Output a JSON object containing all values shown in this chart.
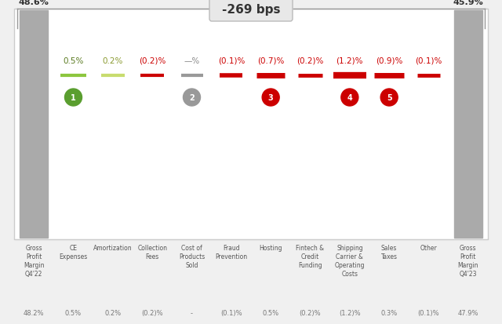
{
  "title": "-269 bps",
  "background_color": "#f0f0f0",
  "chart_bg": "#ffffff",
  "categories": [
    "Gross\nProfit\nMargin\nQ4'22",
    "CE\nExpenses",
    "Amortization",
    "Collection\nFees",
    "Cost of\nProducts\nSold",
    "Fraud\nPrevention",
    "Hosting",
    "Fintech &\nCredit\nFunding",
    "Shipping\nCarrier &\nOperating\nCosts",
    "Sales\nTaxes",
    "Other",
    "Gross\nProfit\nMargin\nQ4'23"
  ],
  "bottom_labels": [
    "48.2%",
    "0.5%",
    "0.2%",
    "(0.2)%",
    "-",
    "(0.1)%",
    "0.5%",
    "(0.2)%",
    "(1.2)%",
    "0.3%",
    "(0.1)%",
    "47.9%"
  ],
  "bar_labels": [
    "48.6%",
    "0.5%",
    "0.2%",
    "(0.2)%",
    "—%",
    "(0.1)%",
    "(0.7)%",
    "(0.2)%",
    "(1.2)%",
    "(0.9)%",
    "(0.1)%",
    "45.9%"
  ],
  "bar_values": [
    48.6,
    0.5,
    0.2,
    -0.2,
    0.0,
    -0.1,
    -0.7,
    -0.2,
    -1.2,
    -0.9,
    -0.1,
    45.9
  ],
  "bar_colors": [
    "#aaaaaa",
    "#8dc63f",
    "#c8dc6f",
    "#cc0000",
    "#aaaaaa",
    "#cc0000",
    "#cc0000",
    "#cc0000",
    "#cc0000",
    "#cc0000",
    "#cc0000",
    "#aaaaaa"
  ],
  "line_colors": [
    "none",
    "#8dc63f",
    "#c8dc6f",
    "#cc0000",
    "#999999",
    "#cc0000",
    "#cc0000",
    "#cc0000",
    "#cc0000",
    "#cc0000",
    "#cc0000",
    "none"
  ],
  "circle_colors": [
    "none",
    "#5a9e2f",
    "none",
    "none",
    "#999999",
    "none",
    "#cc0000",
    "none",
    "#cc0000",
    "#cc0000",
    "none",
    "none"
  ],
  "circle_labels": [
    "",
    "1",
    "",
    "",
    "2",
    "",
    "3",
    "",
    "4",
    "5",
    "",
    ""
  ],
  "has_circle": [
    false,
    true,
    false,
    false,
    true,
    false,
    true,
    false,
    true,
    true,
    false,
    false
  ],
  "tall_bars": [
    true,
    false,
    false,
    false,
    false,
    false,
    false,
    false,
    false,
    false,
    false,
    true
  ],
  "label_color_top": [
    "#333333",
    "#5a7a20",
    "#8a9a30",
    "#cc0000",
    "#888888",
    "#cc0000",
    "#cc0000",
    "#cc0000",
    "#cc0000",
    "#cc0000",
    "#cc0000",
    "#333333"
  ],
  "line_widths": [
    0,
    3.0,
    3.0,
    3.0,
    3.0,
    4.0,
    5.0,
    3.5,
    6.0,
    5.0,
    3.5,
    0
  ]
}
